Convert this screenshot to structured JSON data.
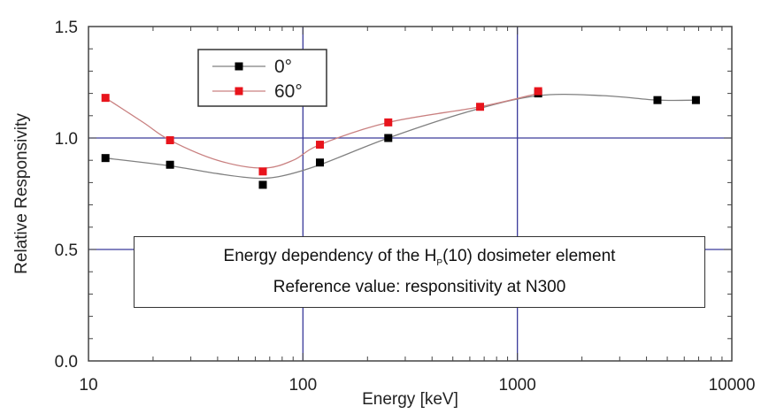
{
  "chart_data": {
    "type": "line",
    "xlabel": "Energy [keV]",
    "ylabel": "Relative Responsivity",
    "x_scale": "log",
    "xlim": [
      10,
      10000
    ],
    "ylim": [
      0.0,
      1.5
    ],
    "x_ticks": [
      "10",
      "100",
      "1000",
      "10000"
    ],
    "y_ticks": [
      "0.0",
      "0.5",
      "1.0",
      "1.5"
    ],
    "grid": "major gridlines at 100, 1000 keV and 0.5, 1.0",
    "legend": {
      "placement": "top-left"
    },
    "series": [
      {
        "name": "0°",
        "color": "#000000",
        "line_color": "#808080",
        "points": [
          {
            "x": 12,
            "y": 0.91
          },
          {
            "x": 24,
            "y": 0.88
          },
          {
            "x": 65,
            "y": 0.79
          },
          {
            "x": 120,
            "y": 0.89
          },
          {
            "x": 250,
            "y": 1.0
          },
          {
            "x": 1250,
            "y": 1.2
          },
          {
            "x": 4500,
            "y": 1.17
          },
          {
            "x": 6800,
            "y": 1.17
          }
        ],
        "curve": [
          {
            "x": 12,
            "y": 0.91
          },
          {
            "x": 24,
            "y": 0.875
          },
          {
            "x": 40,
            "y": 0.84
          },
          {
            "x": 60,
            "y": 0.82
          },
          {
            "x": 80,
            "y": 0.83
          },
          {
            "x": 120,
            "y": 0.88
          },
          {
            "x": 250,
            "y": 1.0
          },
          {
            "x": 600,
            "y": 1.12
          },
          {
            "x": 1250,
            "y": 1.19
          },
          {
            "x": 2500,
            "y": 1.19
          },
          {
            "x": 4500,
            "y": 1.17
          },
          {
            "x": 6800,
            "y": 1.17
          }
        ]
      },
      {
        "name": "60°",
        "color": "#e8141c",
        "line_color": "#c98080",
        "points": [
          {
            "x": 12,
            "y": 1.18
          },
          {
            "x": 24,
            "y": 0.99
          },
          {
            "x": 65,
            "y": 0.85
          },
          {
            "x": 120,
            "y": 0.97
          },
          {
            "x": 250,
            "y": 1.07
          },
          {
            "x": 670,
            "y": 1.14
          },
          {
            "x": 1250,
            "y": 1.21
          }
        ],
        "curve": [
          {
            "x": 12,
            "y": 1.18
          },
          {
            "x": 18,
            "y": 1.07
          },
          {
            "x": 24,
            "y": 0.99
          },
          {
            "x": 40,
            "y": 0.9
          },
          {
            "x": 65,
            "y": 0.865
          },
          {
            "x": 90,
            "y": 0.9
          },
          {
            "x": 120,
            "y": 0.97
          },
          {
            "x": 250,
            "y": 1.07
          },
          {
            "x": 670,
            "y": 1.14
          },
          {
            "x": 1250,
            "y": 1.2
          }
        ]
      }
    ],
    "annotation": {
      "line1_prefix": "Energy dependency of the H",
      "line1_subscript": "P",
      "line1_suffix": "(10) dosimeter element",
      "line2": "Reference value: responsitivity at N300"
    }
  },
  "colors": {
    "gridline": "#3a3a9a",
    "axis": "#444444"
  }
}
